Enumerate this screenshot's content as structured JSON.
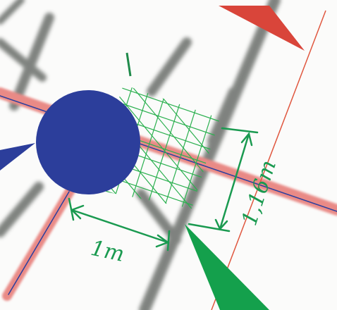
{
  "annotations": {
    "width_label": "1m",
    "height_label": "1,16m"
  }
}
